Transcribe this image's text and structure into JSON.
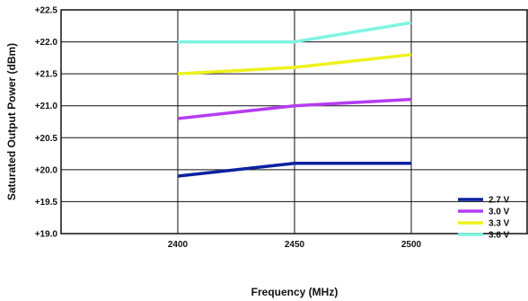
{
  "chart_data": {
    "type": "line",
    "title": "",
    "xlabel": "Frequency (MHz)",
    "ylabel": "Saturated Output Power (dBm)",
    "x": [
      2400,
      2450,
      2500
    ],
    "xlim": [
      2350,
      2550
    ],
    "ylim": [
      19.0,
      22.5
    ],
    "x_ticks": [
      "2400",
      "2450",
      "2500"
    ],
    "y_ticks": [
      "+22.5",
      "+22.0",
      "+21.5",
      "+21.0",
      "+20.5",
      "+20.0",
      "+19.5",
      "+19.0"
    ],
    "grid": true,
    "legend_position": "bottom-right",
    "series": [
      {
        "name": "2.7 V",
        "color": "#0a22a0",
        "values": [
          19.9,
          20.1,
          20.1
        ]
      },
      {
        "name": "3.0 V",
        "color": "#b53cf0",
        "values": [
          20.8,
          21.0,
          21.1
        ]
      },
      {
        "name": "3.3 V",
        "color": "#eef21e",
        "values": [
          21.5,
          21.6,
          21.8
        ]
      },
      {
        "name": "3.6 V",
        "color": "#7ef5e0",
        "values": [
          22.0,
          22.0,
          22.3
        ]
      }
    ]
  }
}
